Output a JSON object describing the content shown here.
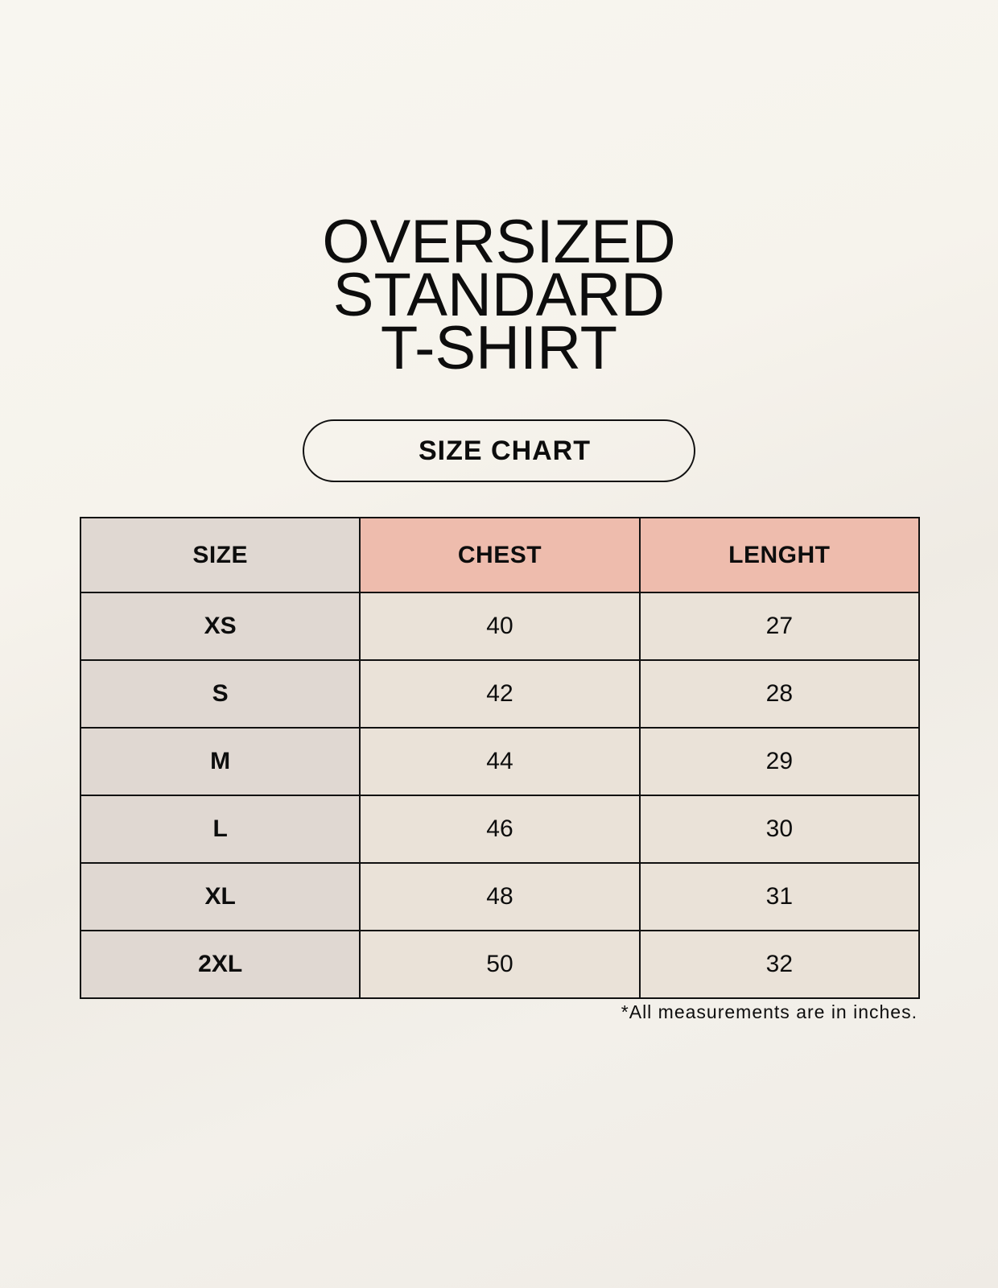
{
  "title": {
    "lines": [
      "OVERSIZED",
      "STANDARD",
      "T-SHIRT"
    ]
  },
  "badge": "SIZE CHART",
  "table": {
    "headers": [
      "SIZE",
      "CHEST",
      "LENGHT"
    ],
    "rows": [
      [
        "XS",
        "40",
        "27"
      ],
      [
        "S",
        "42",
        "28"
      ],
      [
        "M",
        "44",
        "29"
      ],
      [
        "L",
        "46",
        "30"
      ],
      [
        "XL",
        "48",
        "31"
      ],
      [
        "2XL",
        "50",
        "32"
      ]
    ]
  },
  "footnote": "*All measurements are in inches.",
  "colors": {
    "size_column": "#e0d8d2",
    "header_accent": "#eebcad",
    "value_cells": "#eae2d8"
  }
}
